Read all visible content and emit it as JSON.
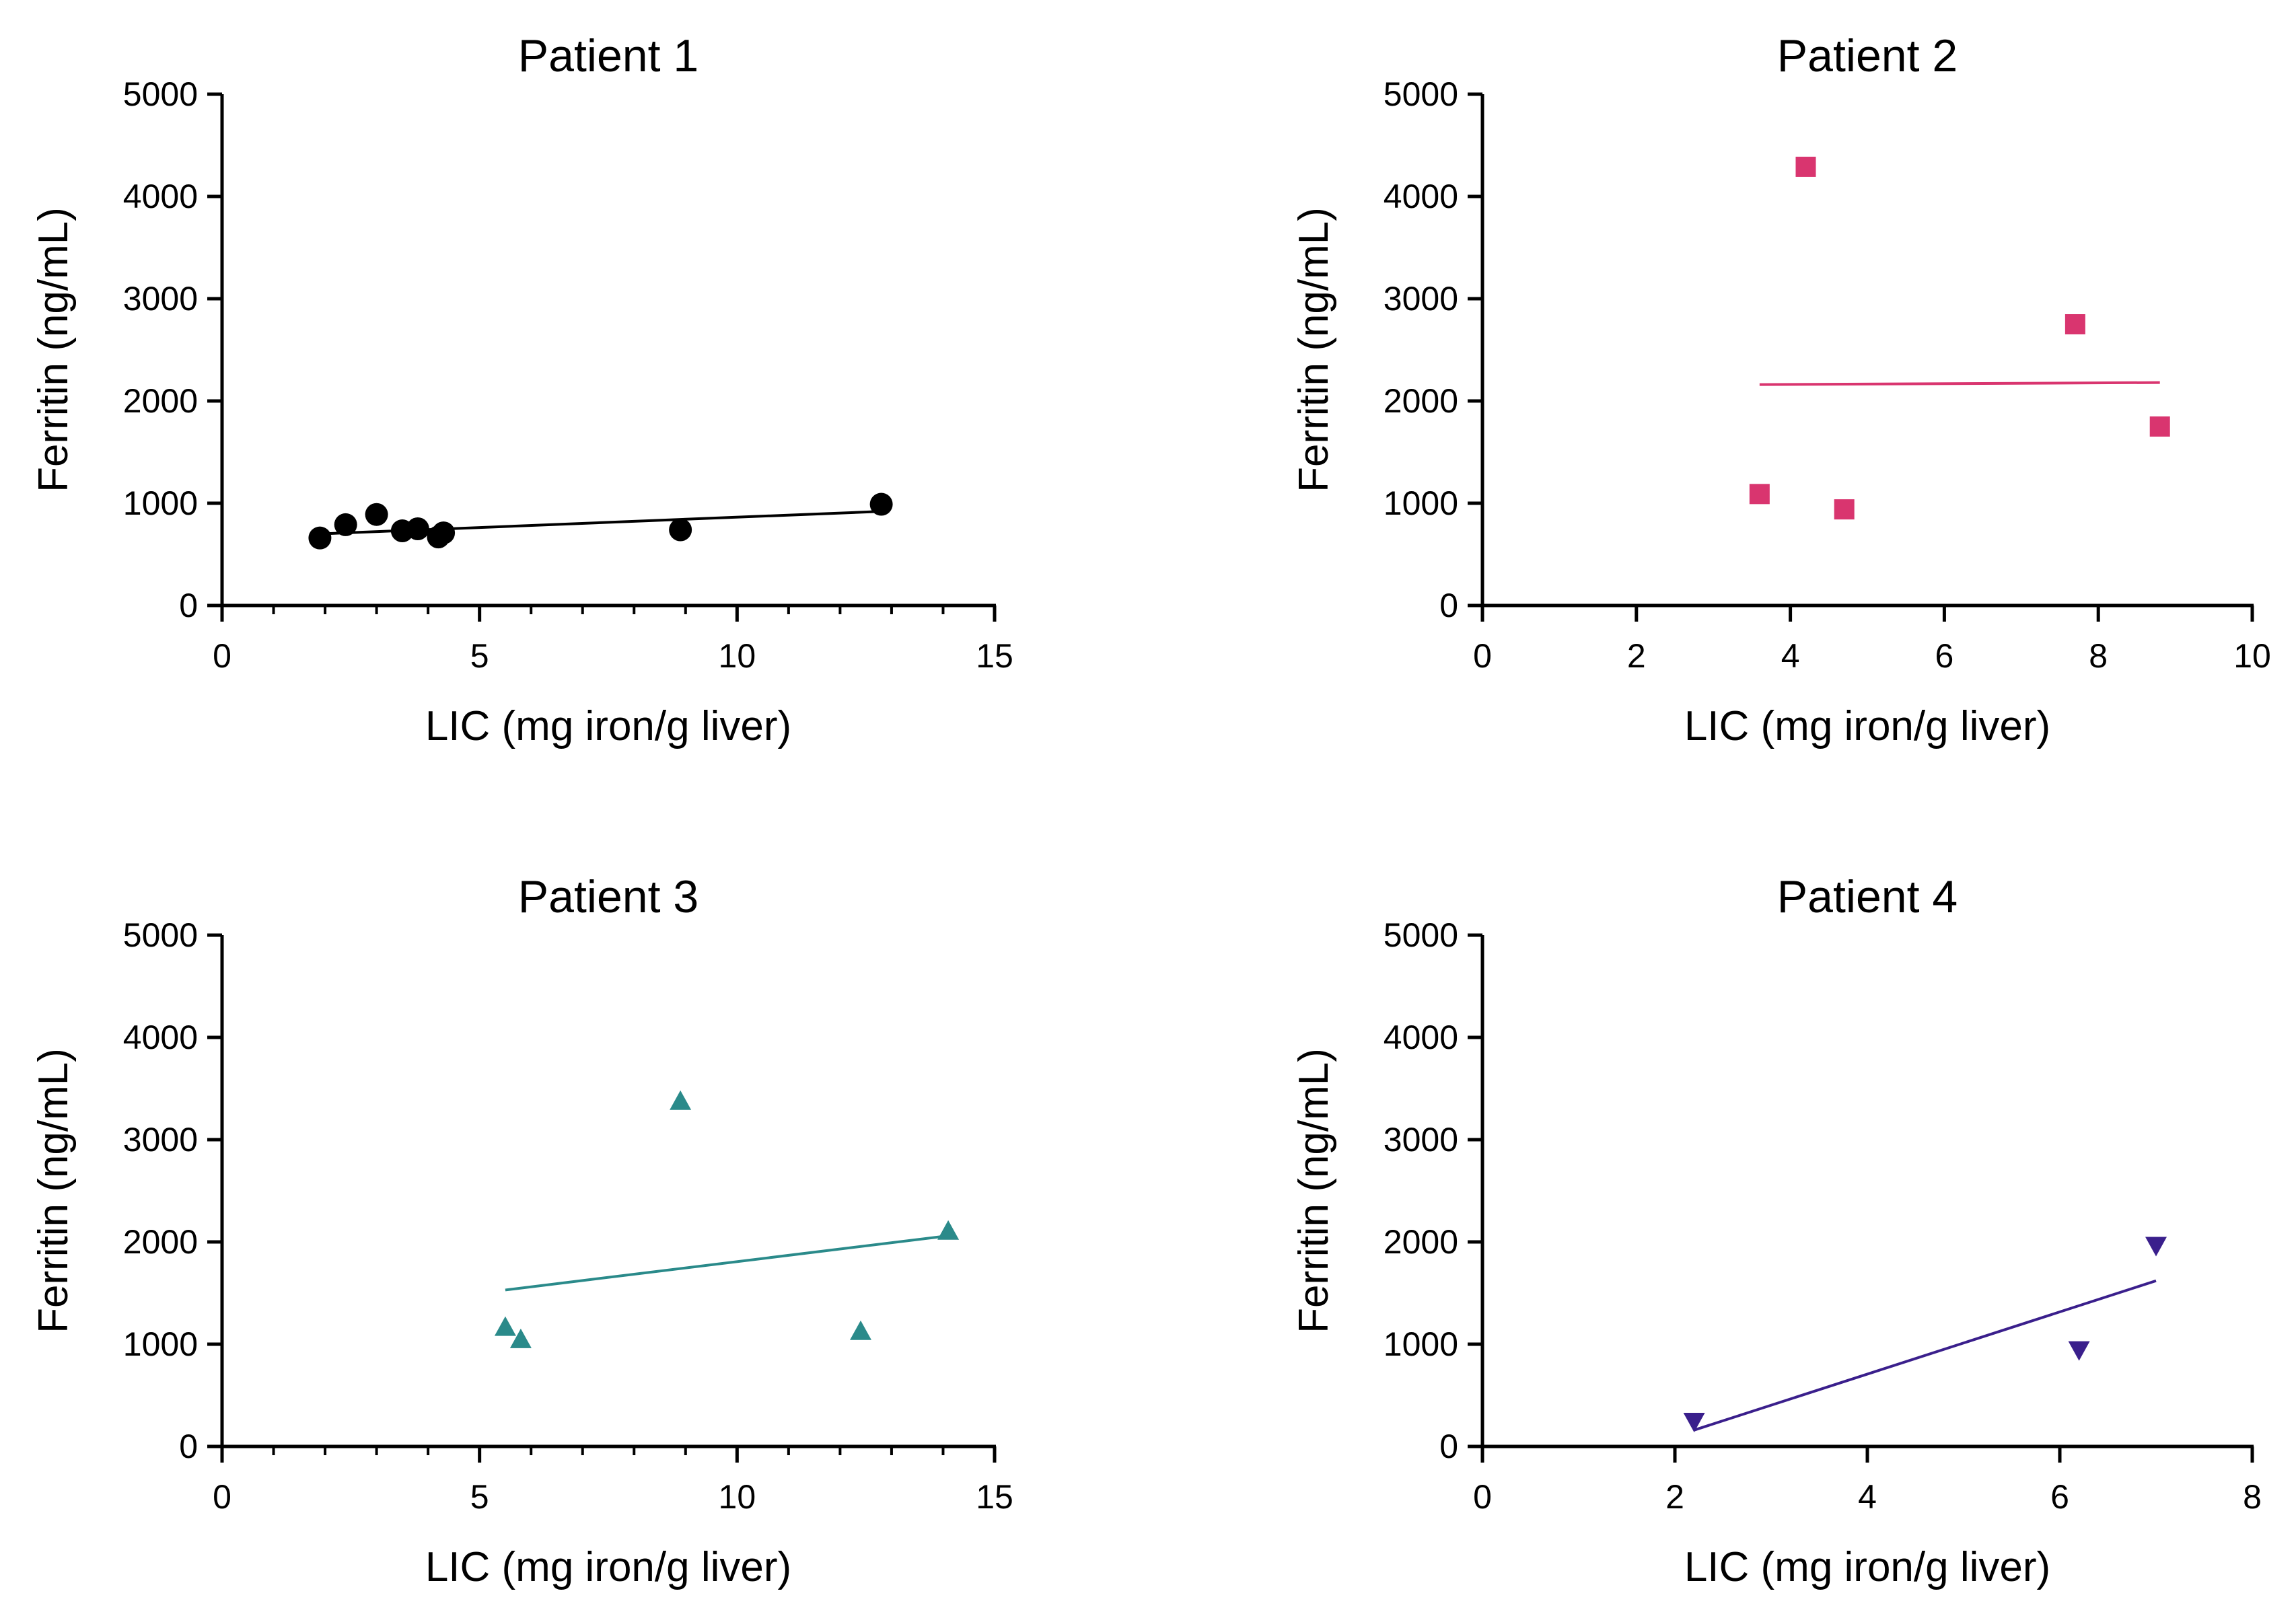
{
  "chart_data": [
    {
      "type": "scatter",
      "title": "Patient 1",
      "xlabel": "LIC (mg iron/g liver)",
      "ylabel": "Ferritin (ng/mL)",
      "xlim": [
        0,
        15
      ],
      "ylim": [
        0,
        5000
      ],
      "xticks": [
        0,
        5,
        10,
        15
      ],
      "yticks": [
        0,
        1000,
        2000,
        3000,
        4000,
        5000
      ],
      "x_minor_step": 1,
      "marker": "circle",
      "color": "#000000",
      "points": [
        {
          "x": 1.9,
          "y": 660
        },
        {
          "x": 2.4,
          "y": 790
        },
        {
          "x": 3.0,
          "y": 890
        },
        {
          "x": 3.5,
          "y": 730
        },
        {
          "x": 3.8,
          "y": 750
        },
        {
          "x": 4.2,
          "y": 670
        },
        {
          "x": 4.3,
          "y": 710
        },
        {
          "x": 8.9,
          "y": 740
        },
        {
          "x": 12.8,
          "y": 990
        }
      ],
      "fit_line": {
        "x": [
          1.9,
          12.8
        ],
        "y": [
          700,
          920
        ]
      }
    },
    {
      "type": "scatter",
      "title": "Patient 2",
      "xlabel": "LIC (mg iron/g liver)",
      "ylabel": "Ferritin (ng/mL)",
      "xlim": [
        0,
        10
      ],
      "ylim": [
        0,
        5000
      ],
      "xticks": [
        0,
        2,
        4,
        6,
        8,
        10
      ],
      "yticks": [
        0,
        1000,
        2000,
        3000,
        4000,
        5000
      ],
      "x_minor_step": 0,
      "marker": "square",
      "color": "#d9356f",
      "points": [
        {
          "x": 3.6,
          "y": 1090
        },
        {
          "x": 4.2,
          "y": 4290
        },
        {
          "x": 4.7,
          "y": 940
        },
        {
          "x": 7.7,
          "y": 2750
        },
        {
          "x": 8.8,
          "y": 1750
        }
      ],
      "fit_line": {
        "x": [
          3.6,
          8.8
        ],
        "y": [
          2160,
          2180
        ]
      }
    },
    {
      "type": "scatter",
      "title": "Patient 3",
      "xlabel": "LIC (mg iron/g liver)",
      "ylabel": "Ferritin (ng/mL)",
      "xlim": [
        0,
        15
      ],
      "ylim": [
        0,
        5000
      ],
      "xticks": [
        0,
        5,
        10,
        15
      ],
      "yticks": [
        0,
        1000,
        2000,
        3000,
        4000,
        5000
      ],
      "x_minor_step": 1,
      "marker": "triangle-up",
      "color": "#2a8a8a",
      "points": [
        {
          "x": 5.5,
          "y": 1160
        },
        {
          "x": 5.8,
          "y": 1040
        },
        {
          "x": 8.9,
          "y": 3370
        },
        {
          "x": 12.4,
          "y": 1120
        },
        {
          "x": 14.1,
          "y": 2100
        }
      ],
      "fit_line": {
        "x": [
          5.5,
          14.1
        ],
        "y": [
          1530,
          2060
        ]
      }
    },
    {
      "type": "scatter",
      "title": "Patient 4",
      "xlabel": "LIC (mg iron/g liver)",
      "ylabel": "Ferritin (ng/mL)",
      "xlim": [
        0,
        8
      ],
      "ylim": [
        0,
        5000
      ],
      "xticks": [
        0,
        2,
        4,
        6,
        8
      ],
      "yticks": [
        0,
        1000,
        2000,
        3000,
        4000,
        5000
      ],
      "x_minor_step": 0,
      "marker": "triangle-down",
      "color": "#3a1f8c",
      "points": [
        {
          "x": 2.2,
          "y": 250
        },
        {
          "x": 6.2,
          "y": 950
        },
        {
          "x": 7.0,
          "y": 1970
        }
      ],
      "fit_line": {
        "x": [
          2.2,
          7.0
        ],
        "y": [
          160,
          1620
        ]
      }
    }
  ]
}
